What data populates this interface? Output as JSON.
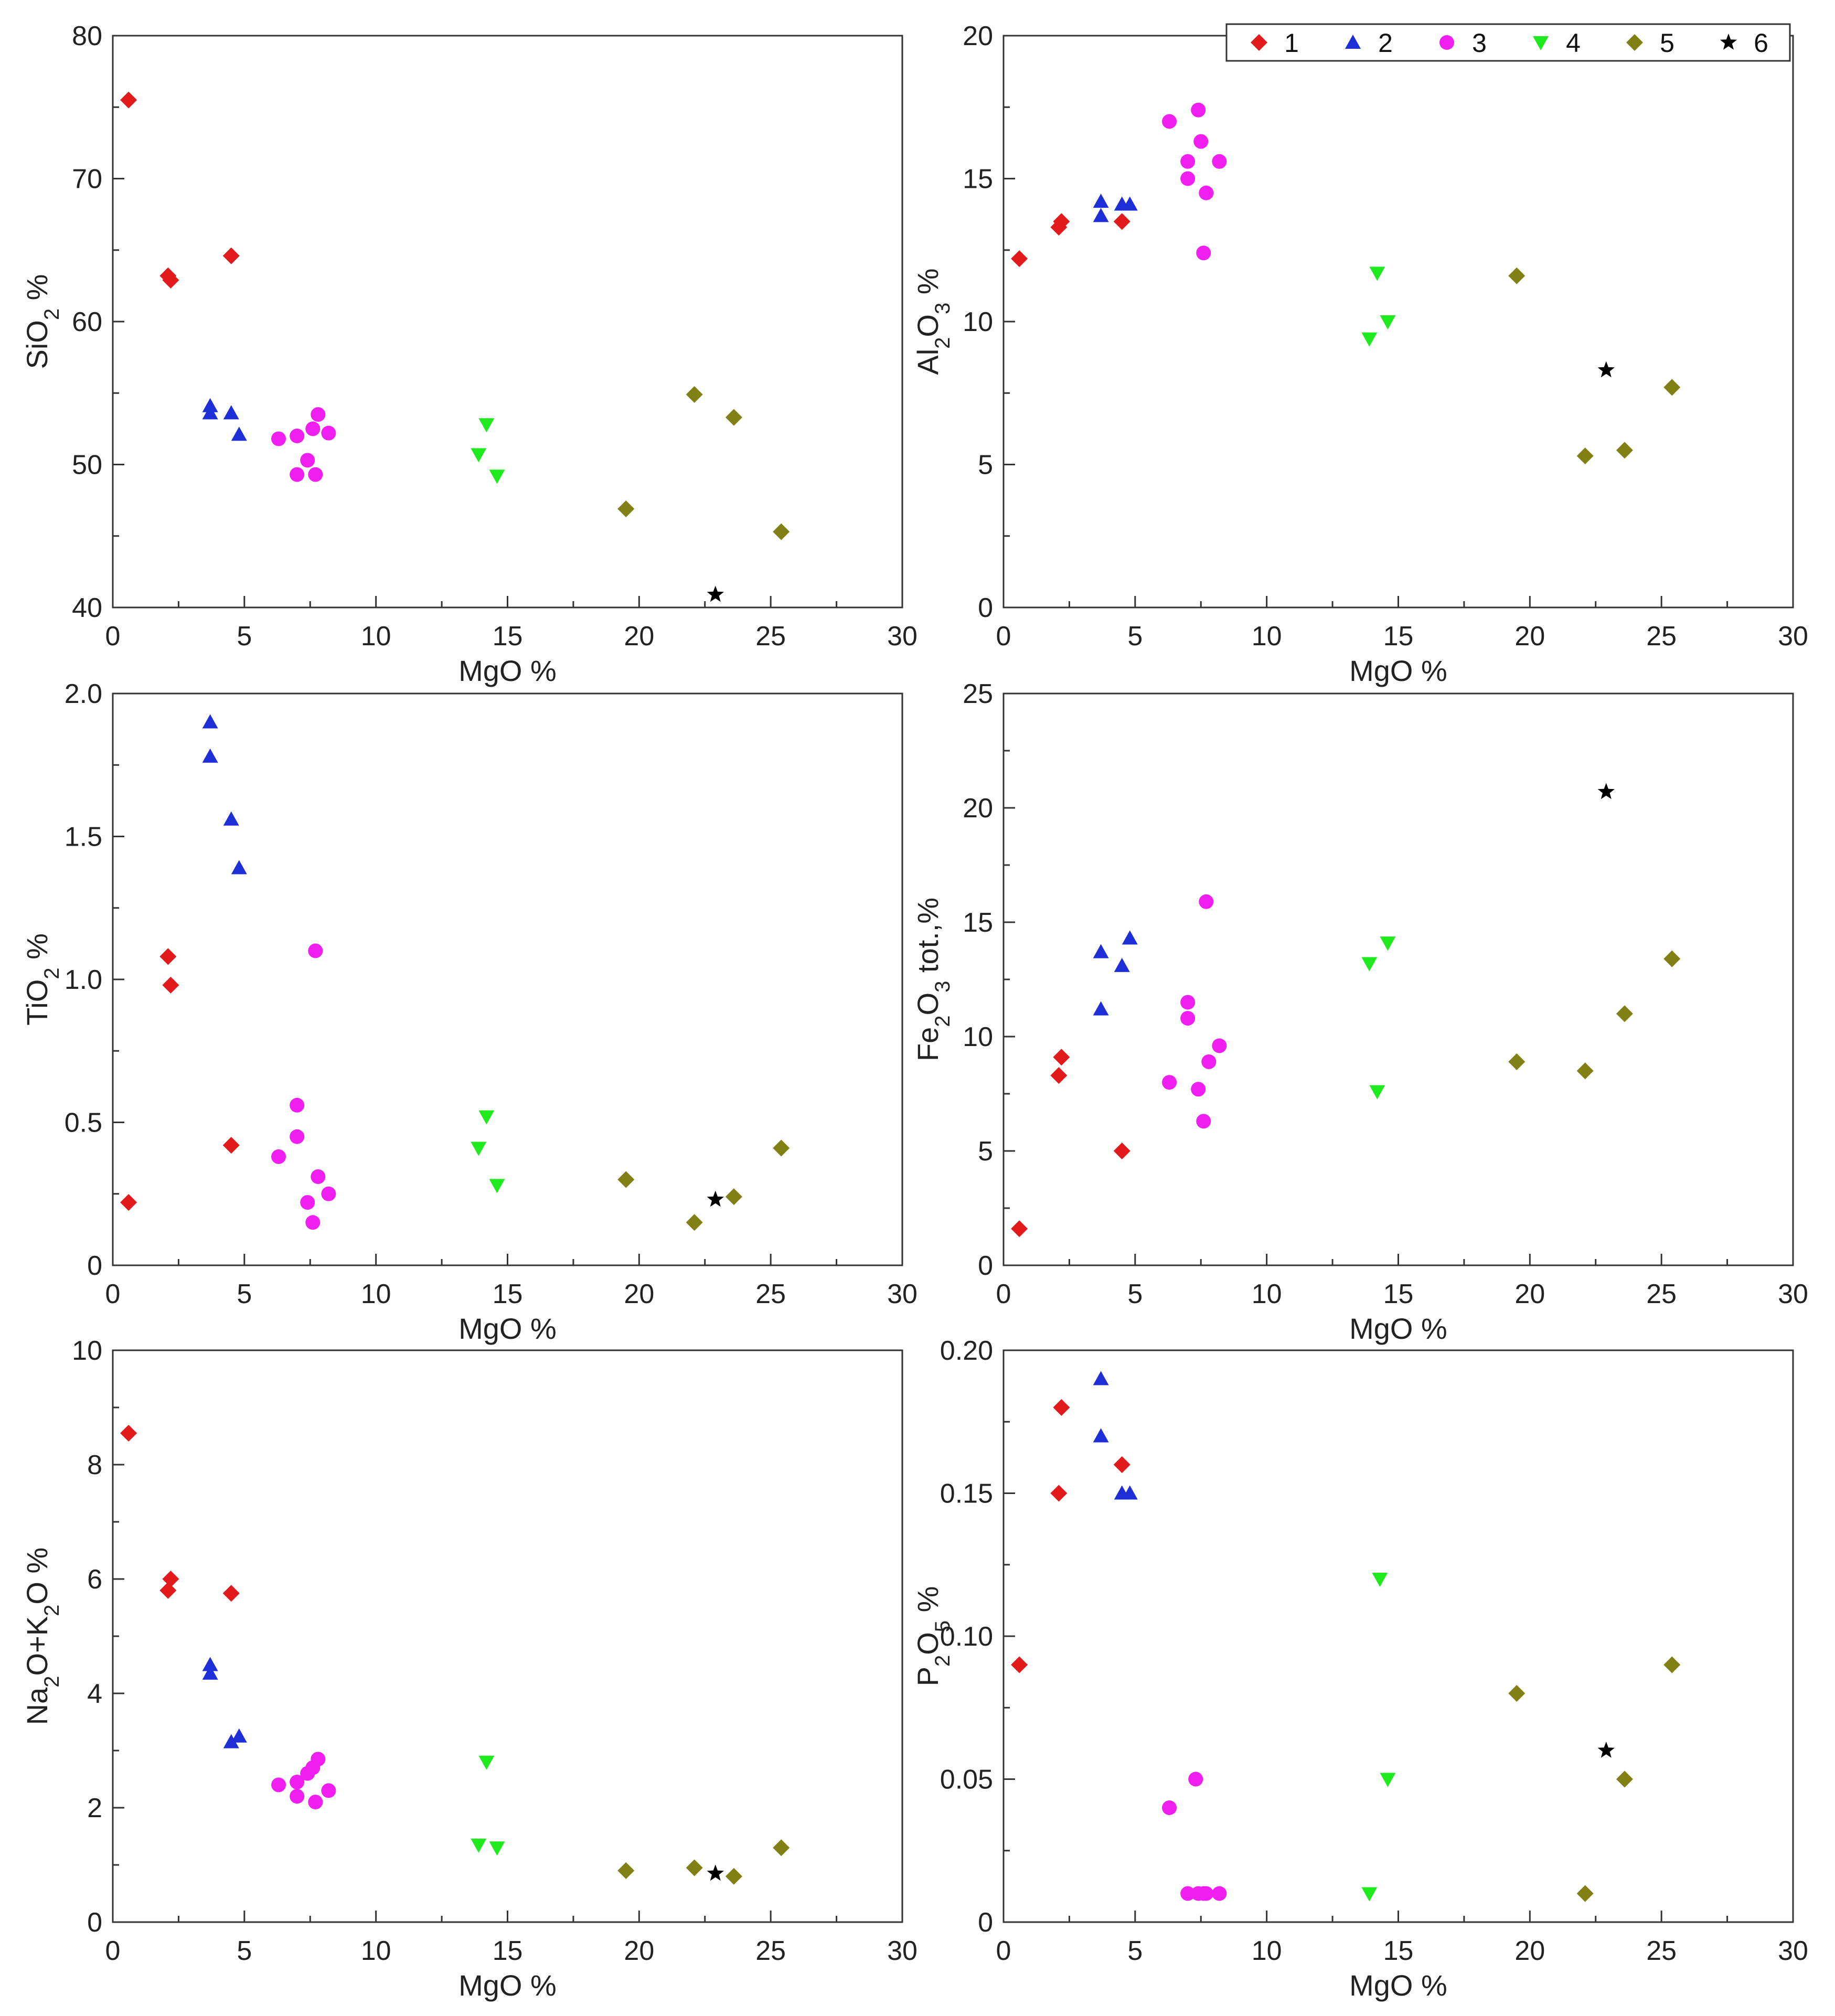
{
  "series_styles": [
    {
      "id": "1",
      "marker": "diamond",
      "color": "#e31a1c"
    },
    {
      "id": "2",
      "marker": "triangle-up",
      "color": "#1f2fd8"
    },
    {
      "id": "3",
      "marker": "circle",
      "color": "#f01ef0"
    },
    {
      "id": "4",
      "marker": "triangle-down",
      "color": "#1eea1e"
    },
    {
      "id": "5",
      "marker": "diamond",
      "color": "#808014"
    },
    {
      "id": "6",
      "marker": "star",
      "color": "#000000"
    }
  ],
  "legend": {
    "entries": [
      "1",
      "2",
      "3",
      "4",
      "5",
      "6"
    ]
  },
  "chart_data": [
    {
      "type": "scatter",
      "id": "sio2",
      "xlabel": "MgO  %",
      "ylabel": {
        "main": "SiO",
        "sub": "2",
        "tail": " %"
      },
      "xlim": [
        0,
        30
      ],
      "ylim": [
        40,
        80
      ],
      "xticks": [
        0,
        5,
        10,
        15,
        20,
        25,
        30
      ],
      "xtick_labels": [
        "0",
        "5",
        "10",
        "15",
        "20",
        "25",
        "30"
      ],
      "yticks": [
        40,
        50,
        60,
        70,
        80
      ],
      "ytick_labels": [
        "40",
        "50",
        "60",
        "70",
        "80"
      ],
      "series": [
        {
          "name": "1",
          "points": [
            [
              0.6,
              75.5
            ],
            [
              2.1,
              63.2
            ],
            [
              2.2,
              62.9
            ],
            [
              4.5,
              64.6
            ]
          ]
        },
        {
          "name": "2",
          "points": [
            [
              3.7,
              54.1
            ],
            [
              3.7,
              53.6
            ],
            [
              4.5,
              53.6
            ],
            [
              4.8,
              52.1
            ]
          ]
        },
        {
          "name": "3",
          "points": [
            [
              6.3,
              51.8
            ],
            [
              7.0,
              49.3
            ],
            [
              7.0,
              52.0
            ],
            [
              7.4,
              50.3
            ],
            [
              7.6,
              52.5
            ],
            [
              7.7,
              49.3
            ],
            [
              7.8,
              53.5
            ],
            [
              8.2,
              52.2
            ]
          ]
        },
        {
          "name": "4",
          "points": [
            [
              13.9,
              50.7
            ],
            [
              14.2,
              52.8
            ],
            [
              14.6,
              49.2
            ]
          ]
        },
        {
          "name": "5",
          "points": [
            [
              19.5,
              46.9
            ],
            [
              22.1,
              54.9
            ],
            [
              23.6,
              53.3
            ],
            [
              25.4,
              45.3
            ]
          ]
        },
        {
          "name": "6",
          "points": [
            [
              22.9,
              40.9
            ]
          ]
        }
      ]
    },
    {
      "type": "scatter",
      "id": "al2o3",
      "xlabel": "MgO  %",
      "ylabel": {
        "main": "Al",
        "sub": "2",
        "mid": "O",
        "sub2": "3",
        "tail": " %"
      },
      "xlim": [
        0,
        30
      ],
      "ylim": [
        0,
        20
      ],
      "xticks": [
        0,
        5,
        10,
        15,
        20,
        25,
        30
      ],
      "xtick_labels": [
        "0",
        "5",
        "10",
        "15",
        "20",
        "25",
        "30"
      ],
      "yticks": [
        0,
        5,
        10,
        15,
        20
      ],
      "ytick_labels": [
        "0",
        "5",
        "10",
        "15",
        "20"
      ],
      "series": [
        {
          "name": "1",
          "points": [
            [
              0.6,
              12.2
            ],
            [
              2.1,
              13.3
            ],
            [
              2.2,
              13.5
            ],
            [
              4.5,
              13.5
            ]
          ]
        },
        {
          "name": "2",
          "points": [
            [
              3.7,
              14.2
            ],
            [
              3.7,
              13.7
            ],
            [
              4.5,
              14.1
            ],
            [
              4.8,
              14.1
            ]
          ]
        },
        {
          "name": "3",
          "points": [
            [
              6.3,
              17.0
            ],
            [
              7.0,
              15.6
            ],
            [
              7.0,
              15.0
            ],
            [
              7.4,
              17.4
            ],
            [
              7.5,
              16.3
            ],
            [
              7.7,
              14.5
            ],
            [
              7.6,
              12.4
            ],
            [
              8.2,
              15.6
            ]
          ]
        },
        {
          "name": "4",
          "points": [
            [
              13.9,
              9.4
            ],
            [
              14.2,
              11.7
            ],
            [
              14.6,
              10.0
            ]
          ]
        },
        {
          "name": "5",
          "points": [
            [
              19.5,
              11.6
            ],
            [
              22.1,
              5.3
            ],
            [
              23.6,
              5.5
            ],
            [
              25.4,
              7.7
            ]
          ]
        },
        {
          "name": "6",
          "points": [
            [
              22.9,
              8.3
            ]
          ]
        }
      ]
    },
    {
      "type": "scatter",
      "id": "tio2",
      "xlabel": "MgO  %",
      "ylabel": {
        "main": "TiO",
        "sub": "2",
        "tail": " %"
      },
      "xlim": [
        0,
        30
      ],
      "ylim": [
        0,
        2.0
      ],
      "xticks": [
        0,
        5,
        10,
        15,
        20,
        25,
        30
      ],
      "xtick_labels": [
        "0",
        "5",
        "10",
        "15",
        "20",
        "25",
        "30"
      ],
      "yticks": [
        0,
        0.5,
        1.0,
        1.5,
        2.0
      ],
      "ytick_labels": [
        "0",
        "0.5",
        "1.0",
        "1.5",
        "2.0"
      ],
      "series": [
        {
          "name": "1",
          "points": [
            [
              0.6,
              0.22
            ],
            [
              2.1,
              1.08
            ],
            [
              2.2,
              0.98
            ],
            [
              4.5,
              0.42
            ]
          ]
        },
        {
          "name": "2",
          "points": [
            [
              3.7,
              1.9
            ],
            [
              3.7,
              1.78
            ],
            [
              4.5,
              1.56
            ],
            [
              4.8,
              1.39
            ]
          ]
        },
        {
          "name": "3",
          "points": [
            [
              6.3,
              0.38
            ],
            [
              7.0,
              0.56
            ],
            [
              7.0,
              0.45
            ],
            [
              7.4,
              0.22
            ],
            [
              7.6,
              0.15
            ],
            [
              7.7,
              1.1
            ],
            [
              7.8,
              0.31
            ],
            [
              8.2,
              0.25
            ]
          ]
        },
        {
          "name": "4",
          "points": [
            [
              13.9,
              0.41
            ],
            [
              14.2,
              0.52
            ],
            [
              14.6,
              0.28
            ]
          ]
        },
        {
          "name": "5",
          "points": [
            [
              19.5,
              0.3
            ],
            [
              22.1,
              0.15
            ],
            [
              23.6,
              0.24
            ],
            [
              25.4,
              0.41
            ]
          ]
        },
        {
          "name": "6",
          "points": [
            [
              22.9,
              0.23
            ]
          ]
        }
      ]
    },
    {
      "type": "scatter",
      "id": "fe2o3",
      "xlabel": "MgO  %",
      "ylabel": {
        "main": "Fe",
        "sub": "2",
        "mid": "O",
        "sub2": "3",
        "tail": " tot.,%"
      },
      "xlim": [
        0,
        30
      ],
      "ylim": [
        0,
        25
      ],
      "xticks": [
        0,
        5,
        10,
        15,
        20,
        25,
        30
      ],
      "xtick_labels": [
        "0",
        "5",
        "10",
        "15",
        "20",
        "25",
        "30"
      ],
      "yticks": [
        0,
        5,
        10,
        15,
        20,
        25
      ],
      "ytick_labels": [
        "0",
        "5",
        "10",
        "15",
        "20",
        "25"
      ],
      "series": [
        {
          "name": "1",
          "points": [
            [
              0.6,
              1.6
            ],
            [
              2.1,
              8.3
            ],
            [
              2.2,
              9.1
            ],
            [
              4.5,
              5.0
            ]
          ]
        },
        {
          "name": "2",
          "points": [
            [
              3.7,
              13.7
            ],
            [
              3.7,
              11.2
            ],
            [
              4.5,
              13.1
            ],
            [
              4.8,
              14.3
            ]
          ]
        },
        {
          "name": "3",
          "points": [
            [
              6.3,
              8.0
            ],
            [
              7.0,
              11.5
            ],
            [
              7.0,
              10.8
            ],
            [
              7.4,
              7.7
            ],
            [
              7.6,
              6.3
            ],
            [
              7.7,
              15.9
            ],
            [
              7.8,
              8.9
            ],
            [
              8.2,
              9.6
            ]
          ]
        },
        {
          "name": "4",
          "points": [
            [
              13.9,
              13.2
            ],
            [
              14.2,
              7.6
            ],
            [
              14.6,
              14.1
            ]
          ]
        },
        {
          "name": "5",
          "points": [
            [
              19.5,
              8.9
            ],
            [
              22.1,
              8.5
            ],
            [
              23.6,
              11.0
            ],
            [
              25.4,
              13.4
            ]
          ]
        },
        {
          "name": "6",
          "points": [
            [
              22.9,
              20.7
            ]
          ]
        }
      ]
    },
    {
      "type": "scatter",
      "id": "alkali",
      "xlabel": "MgO  %",
      "ylabel": {
        "main": "Na",
        "sub": "2",
        "mid": "O+K",
        "sub2": "2",
        "tail": "O %"
      },
      "xlim": [
        0,
        30
      ],
      "ylim": [
        0,
        10
      ],
      "xticks": [
        0,
        5,
        10,
        15,
        20,
        25,
        30
      ],
      "xtick_labels": [
        "0",
        "5",
        "10",
        "15",
        "20",
        "25",
        "30"
      ],
      "yticks": [
        0,
        2,
        4,
        6,
        8,
        10
      ],
      "ytick_labels": [
        "0",
        "2",
        "4",
        "6",
        "8",
        "10"
      ],
      "series": [
        {
          "name": "1",
          "points": [
            [
              0.6,
              8.55
            ],
            [
              2.1,
              5.8
            ],
            [
              2.2,
              6.0
            ],
            [
              4.5,
              5.75
            ]
          ]
        },
        {
          "name": "2",
          "points": [
            [
              3.7,
              4.5
            ],
            [
              3.7,
              4.35
            ],
            [
              4.5,
              3.15
            ],
            [
              4.8,
              3.25
            ]
          ]
        },
        {
          "name": "3",
          "points": [
            [
              6.3,
              2.4
            ],
            [
              7.0,
              2.2
            ],
            [
              7.0,
              2.45
            ],
            [
              7.4,
              2.6
            ],
            [
              7.6,
              2.7
            ],
            [
              7.7,
              2.1
            ],
            [
              7.8,
              2.85
            ],
            [
              8.2,
              2.3
            ]
          ]
        },
        {
          "name": "4",
          "points": [
            [
              13.9,
              1.35
            ],
            [
              14.2,
              2.8
            ],
            [
              14.6,
              1.3
            ]
          ]
        },
        {
          "name": "5",
          "points": [
            [
              19.5,
              0.9
            ],
            [
              22.1,
              0.95
            ],
            [
              23.6,
              0.8
            ],
            [
              25.4,
              1.3
            ]
          ]
        },
        {
          "name": "6",
          "points": [
            [
              22.9,
              0.85
            ]
          ]
        }
      ]
    },
    {
      "type": "scatter",
      "id": "p2o5",
      "xlabel": "MgO  %",
      "ylabel": {
        "main": "P",
        "sub": "2",
        "mid": "O",
        "sub2": "5",
        "tail": " %"
      },
      "xlim": [
        0,
        30
      ],
      "ylim": [
        0,
        0.2
      ],
      "xticks": [
        0,
        5,
        10,
        15,
        20,
        25,
        30
      ],
      "xtick_labels": [
        "0",
        "5",
        "10",
        "15",
        "20",
        "25",
        "30"
      ],
      "yticks": [
        0,
        0.05,
        0.1,
        0.15,
        0.2
      ],
      "ytick_labels": [
        "0",
        "0.05",
        "0.10",
        "0.15",
        "0.20"
      ],
      "series": [
        {
          "name": "1",
          "points": [
            [
              0.6,
              0.09
            ],
            [
              2.1,
              0.15
            ],
            [
              2.2,
              0.18
            ],
            [
              4.5,
              0.16
            ]
          ]
        },
        {
          "name": "2",
          "points": [
            [
              3.7,
              0.19
            ],
            [
              3.7,
              0.17
            ],
            [
              4.5,
              0.15
            ],
            [
              4.8,
              0.15
            ]
          ]
        },
        {
          "name": "3",
          "points": [
            [
              6.3,
              0.04
            ],
            [
              7.0,
              0.01
            ],
            [
              7.3,
              0.05
            ],
            [
              7.4,
              0.01
            ],
            [
              7.6,
              0.01
            ],
            [
              7.7,
              0.01
            ],
            [
              8.2,
              0.01
            ]
          ]
        },
        {
          "name": "4",
          "points": [
            [
              13.9,
              0.01
            ],
            [
              14.3,
              0.12
            ],
            [
              14.6,
              0.05
            ]
          ]
        },
        {
          "name": "5",
          "points": [
            [
              19.5,
              0.08
            ],
            [
              22.1,
              0.01
            ],
            [
              23.6,
              0.05
            ],
            [
              25.4,
              0.09
            ]
          ]
        },
        {
          "name": "6",
          "points": [
            [
              22.9,
              0.06
            ]
          ]
        }
      ]
    }
  ]
}
